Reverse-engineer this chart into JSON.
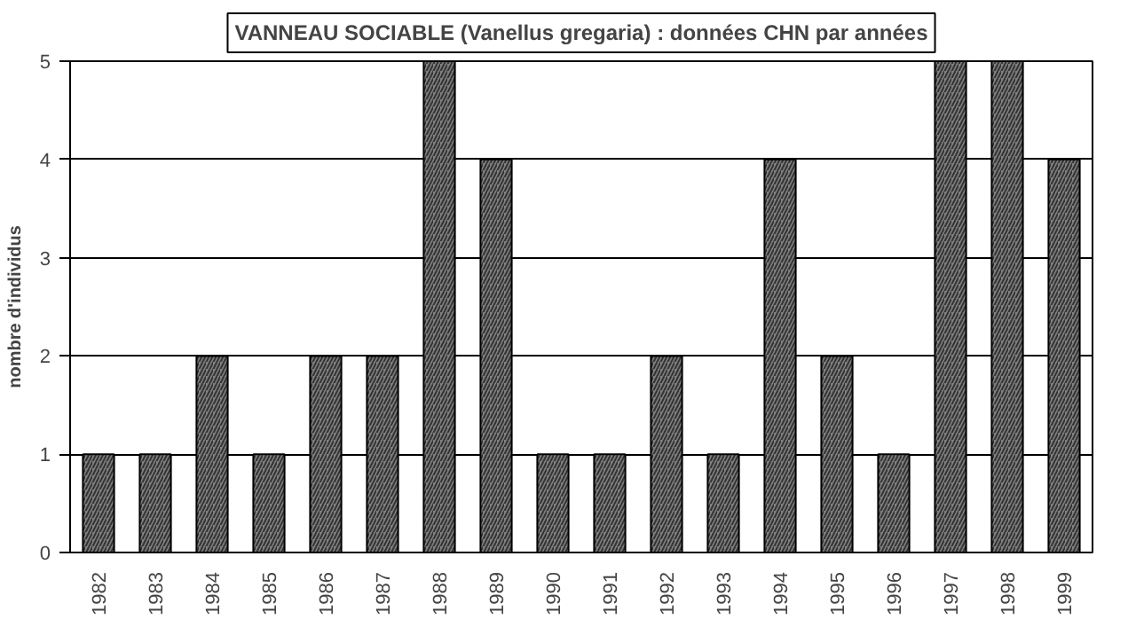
{
  "chart_data": {
    "type": "bar",
    "title": "VANNEAU SOCIABLE (Vanellus gregaria) : données CHN par années",
    "ylabel": "nombre d'individus",
    "categories": [
      "1982",
      "1983",
      "1984",
      "1985",
      "1986",
      "1987",
      "1988",
      "1989",
      "1990",
      "1991",
      "1992",
      "1993",
      "1994",
      "1995",
      "1996",
      "1997",
      "1998",
      "1999"
    ],
    "values": [
      1,
      1,
      2,
      1,
      2,
      2,
      5,
      4,
      1,
      1,
      2,
      1,
      4,
      2,
      1,
      5,
      5,
      4
    ],
    "color": "#808080",
    "ylim": [
      0,
      5
    ],
    "yticks": [
      0,
      1,
      2,
      3,
      4,
      5
    ],
    "grid": "y"
  }
}
